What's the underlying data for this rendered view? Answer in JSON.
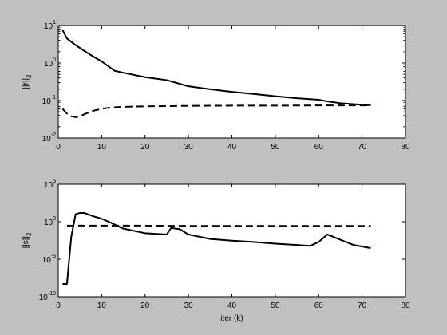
{
  "chart_data": [
    {
      "type": "line",
      "ylabel": {
        "text": "||r||",
        "sub": "2"
      },
      "xlabel": "",
      "xlim": [
        0,
        80
      ],
      "ylim": [
        0.01,
        10
      ],
      "yscale": "log",
      "xticks": [
        0,
        10,
        20,
        30,
        40,
        50,
        60,
        70,
        80
      ],
      "yticks": [
        {
          "value": 0.01,
          "base": "10",
          "exp": "-2"
        },
        {
          "value": 0.1,
          "base": "10",
          "exp": "-1"
        },
        {
          "value": 1,
          "base": "10",
          "exp": "0"
        },
        {
          "value": 10,
          "base": "10",
          "exp": "1"
        }
      ],
      "series": [
        {
          "style": "solid",
          "x": [
            1,
            2,
            4,
            6,
            8,
            10,
            12,
            13,
            15,
            20,
            25,
            27,
            30,
            35,
            40,
            45,
            50,
            55,
            60,
            62,
            65,
            68,
            70,
            72
          ],
          "y": [
            7.5,
            4.5,
            3.0,
            2.1,
            1.5,
            1.1,
            0.75,
            0.62,
            0.55,
            0.42,
            0.35,
            0.3,
            0.24,
            0.2,
            0.17,
            0.15,
            0.13,
            0.115,
            0.105,
            0.095,
            0.085,
            0.08,
            0.077,
            0.075
          ]
        },
        {
          "style": "dashed",
          "x": [
            1,
            2,
            3,
            4,
            5,
            6,
            8,
            10,
            12,
            15,
            20,
            25,
            30,
            40,
            50,
            60,
            70,
            72
          ],
          "y": [
            0.06,
            0.045,
            0.038,
            0.036,
            0.038,
            0.043,
            0.053,
            0.06,
            0.065,
            0.068,
            0.07,
            0.071,
            0.072,
            0.073,
            0.073,
            0.074,
            0.074,
            0.074
          ]
        }
      ]
    },
    {
      "type": "line",
      "ylabel": {
        "text": "||s||",
        "sub": "2"
      },
      "xlabel": "iter (k)",
      "xlim": [
        0,
        80
      ],
      "ylim": [
        1e-10,
        100000
      ],
      "yscale": "log",
      "xticks": [
        0,
        10,
        20,
        30,
        40,
        50,
        60,
        70,
        80
      ],
      "yticks": [
        {
          "value": 1e-10,
          "base": "10",
          "exp": "-10"
        },
        {
          "value": 1e-05,
          "base": "10",
          "exp": "-5"
        },
        {
          "value": 1,
          "base": "10",
          "exp": "0"
        },
        {
          "value": 100000,
          "base": "10",
          "exp": "5"
        }
      ],
      "series": [
        {
          "style": "solid",
          "x": [
            1,
            2,
            3,
            4,
            5,
            6,
            8,
            10,
            12,
            15,
            20,
            25,
            26,
            28,
            30,
            35,
            40,
            45,
            50,
            55,
            58,
            60,
            62,
            65,
            68,
            70,
            72
          ],
          "y": [
            5e-09,
            5e-09,
            0.01,
            10,
            15,
            15,
            5.5,
            2.5,
            0.8,
            0.12,
            0.03,
            0.02,
            0.15,
            0.1,
            0.02,
            0.005,
            0.003,
            0.002,
            0.0012,
            0.0008,
            0.0006,
            0.002,
            0.02,
            0.004,
            0.0008,
            0.0005,
            0.0003
          ]
        },
        {
          "style": "dashed",
          "x": [
            2,
            5,
            10,
            20,
            30,
            40,
            50,
            60,
            70,
            72
          ],
          "y": [
            0.3,
            0.3,
            0.3,
            0.3,
            0.28,
            0.28,
            0.28,
            0.28,
            0.28,
            0.28
          ]
        }
      ]
    }
  ],
  "colors": {
    "figure_bg": "#c0c0c0",
    "axes_bg": "#ffffff",
    "line": "#000000"
  }
}
